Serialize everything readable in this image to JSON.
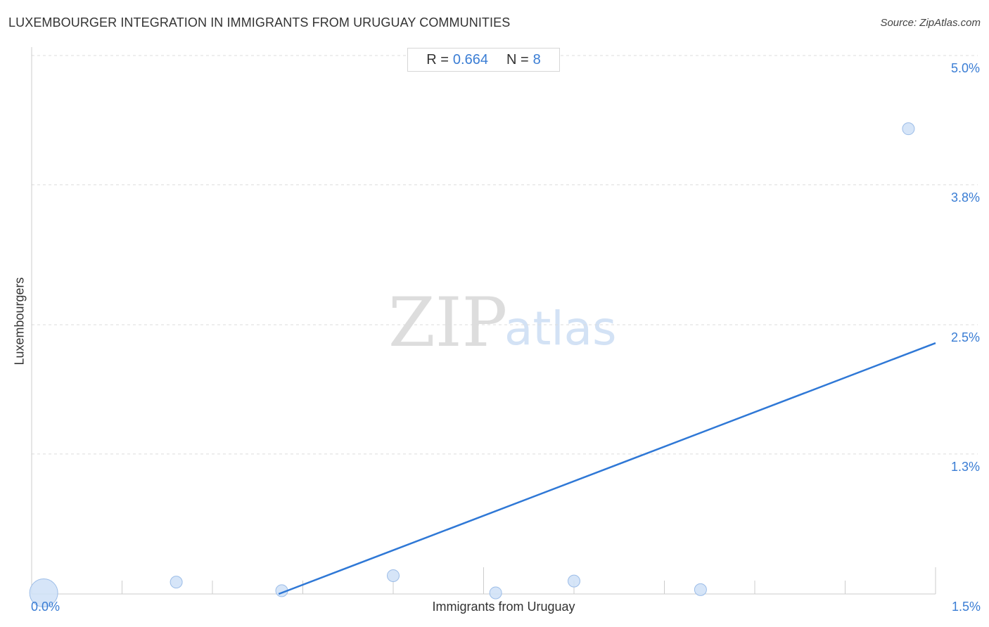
{
  "chart_data": {
    "type": "scatter",
    "title": "LUXEMBOURGER INTEGRATION IN IMMIGRANTS FROM URUGUAY COMMUNITIES",
    "source": "Source: ZipAtlas.com",
    "xlabel": "Immigrants from Uruguay",
    "ylabel": "Luxembourgers",
    "xlim": [
      0,
      1.5
    ],
    "ylim": [
      0,
      5.0
    ],
    "x_tick_labels": [
      "0.0%",
      "1.5%"
    ],
    "y_ticks": [
      {
        "value": 5.0,
        "label": "5.0%"
      },
      {
        "value": 3.8,
        "label": "3.8%"
      },
      {
        "value": 2.5,
        "label": "2.5%"
      },
      {
        "value": 1.3,
        "label": "1.3%"
      }
    ],
    "grid": true,
    "stats": {
      "r_label": "R =",
      "r_value": "0.664",
      "n_label": "N =",
      "n_value": "8"
    },
    "points": [
      {
        "x": 0.02,
        "y": 0.01,
        "size": "large"
      },
      {
        "x": 0.24,
        "y": 0.11,
        "size": "small"
      },
      {
        "x": 0.415,
        "y": 0.03,
        "size": "small"
      },
      {
        "x": 0.6,
        "y": 0.17,
        "size": "small"
      },
      {
        "x": 0.77,
        "y": 0.01,
        "size": "small"
      },
      {
        "x": 0.9,
        "y": 0.12,
        "size": "small"
      },
      {
        "x": 1.11,
        "y": 0.04,
        "size": "small"
      },
      {
        "x": 1.455,
        "y": 4.32,
        "size": "small"
      }
    ],
    "trendline": {
      "x": [
        0.41,
        1.5
      ],
      "y": [
        0.0,
        2.33
      ]
    },
    "colors": {
      "point_fill": "#cfe0f7",
      "point_stroke": "#9cbde8",
      "trendline": "#2f78d6",
      "tick_text": "#3a7dd4",
      "grid": "#dcdcdc"
    }
  },
  "watermark": {
    "zip": "ZIP",
    "atlas": "atlas"
  }
}
